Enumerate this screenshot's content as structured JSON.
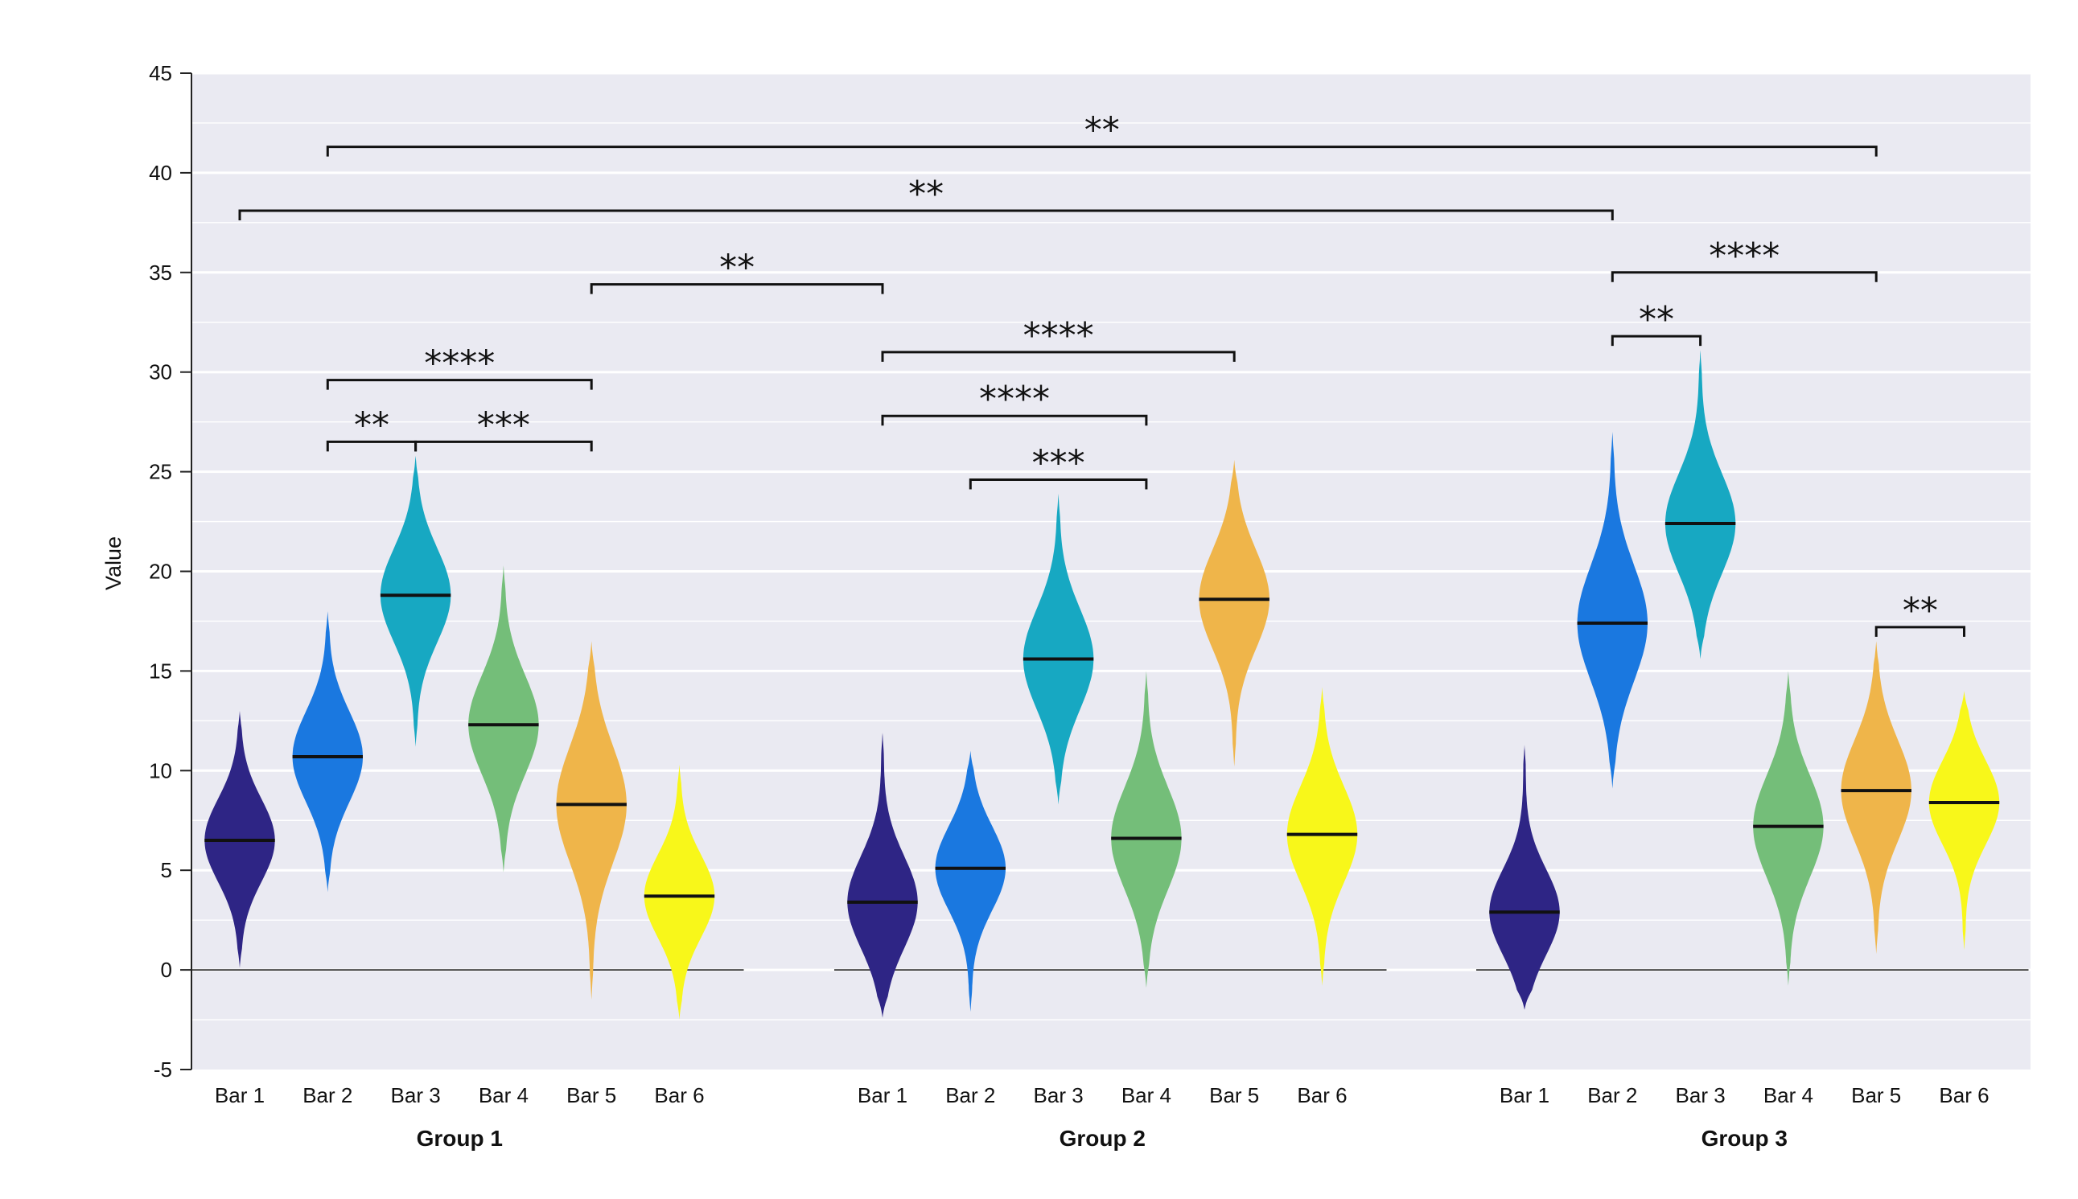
{
  "chart_data": {
    "type": "violin",
    "title": "",
    "ylabel": "Value",
    "xlabel": "",
    "ylim": [
      -5,
      45
    ],
    "yticks": [
      "-5",
      "0",
      "5",
      "10",
      "15",
      "20",
      "25",
      "30",
      "35",
      "40",
      "45"
    ],
    "grid": true,
    "colors": {
      "background": "#eaeaf2",
      "Bar 1": "#2e2585",
      "Bar 2": "#1a78e0",
      "Bar 3": "#17a8c2",
      "Bar 4": "#74be79",
      "Bar 5": "#efb54a",
      "Bar 6": "#f8f71a"
    },
    "groups": [
      {
        "name": "Group 1",
        "bars": [
          {
            "label": "Bar 1",
            "median": 6.5,
            "min": 0.1,
            "max": 13.0
          },
          {
            "label": "Bar 2",
            "median": 10.7,
            "min": 3.9,
            "max": 18.0
          },
          {
            "label": "Bar 3",
            "median": 18.8,
            "min": 11.2,
            "max": 25.8
          },
          {
            "label": "Bar 4",
            "median": 12.3,
            "min": 4.9,
            "max": 20.3
          },
          {
            "label": "Bar 5",
            "median": 8.3,
            "min": -1.5,
            "max": 16.5
          },
          {
            "label": "Bar 6",
            "median": 3.7,
            "min": -2.5,
            "max": 10.3
          }
        ]
      },
      {
        "name": "Group 2",
        "bars": [
          {
            "label": "Bar 1",
            "median": 3.4,
            "min": -2.4,
            "max": 11.9
          },
          {
            "label": "Bar 2",
            "median": 5.1,
            "min": -2.1,
            "max": 11.0
          },
          {
            "label": "Bar 3",
            "median": 15.6,
            "min": 8.3,
            "max": 23.9
          },
          {
            "label": "Bar 4",
            "median": 6.6,
            "min": -0.9,
            "max": 15.0
          },
          {
            "label": "Bar 5",
            "median": 18.6,
            "min": 10.2,
            "max": 25.6
          },
          {
            "label": "Bar 6",
            "median": 6.8,
            "min": -0.8,
            "max": 14.2
          }
        ]
      },
      {
        "name": "Group 3",
        "bars": [
          {
            "label": "Bar 1",
            "median": 2.9,
            "min": -2.0,
            "max": 11.3
          },
          {
            "label": "Bar 2",
            "median": 17.4,
            "min": 9.1,
            "max": 27.0
          },
          {
            "label": "Bar 3",
            "median": 22.4,
            "min": 15.6,
            "max": 31.1
          },
          {
            "label": "Bar 4",
            "median": 7.2,
            "min": -0.8,
            "max": 15.0
          },
          {
            "label": "Bar 5",
            "median": 9.0,
            "min": 0.8,
            "max": 16.5
          },
          {
            "label": "Bar 6",
            "median": 8.4,
            "min": 1.0,
            "max": 14.0
          }
        ]
      }
    ],
    "significance": [
      {
        "label": "**",
        "from": [
          0,
          1
        ],
        "to": [
          2,
          4
        ],
        "y": 41.3
      },
      {
        "label": "**",
        "from": [
          0,
          0
        ],
        "to": [
          2,
          1
        ],
        "y": 38.1
      },
      {
        "label": "**",
        "from": [
          0,
          4
        ],
        "to": [
          1,
          0
        ],
        "y": 34.4
      },
      {
        "label": "****",
        "from": [
          0,
          1
        ],
        "to": [
          0,
          4
        ],
        "y": 29.6
      },
      {
        "label": "**",
        "from": [
          0,
          1
        ],
        "to": [
          0,
          2
        ],
        "y": 26.5
      },
      {
        "label": "***",
        "from": [
          0,
          2
        ],
        "to": [
          0,
          4
        ],
        "y": 26.5
      },
      {
        "label": "****",
        "from": [
          1,
          0
        ],
        "to": [
          1,
          4
        ],
        "y": 31.0
      },
      {
        "label": "****",
        "from": [
          1,
          0
        ],
        "to": [
          1,
          3
        ],
        "y": 27.8
      },
      {
        "label": "***",
        "from": [
          1,
          1
        ],
        "to": [
          1,
          3
        ],
        "y": 24.6
      },
      {
        "label": "****",
        "from": [
          2,
          1
        ],
        "to": [
          2,
          4
        ],
        "y": 35.0
      },
      {
        "label": "**",
        "from": [
          2,
          1
        ],
        "to": [
          2,
          2
        ],
        "y": 31.8
      },
      {
        "label": "**",
        "from": [
          2,
          4
        ],
        "to": [
          2,
          5
        ],
        "y": 17.2
      }
    ]
  }
}
